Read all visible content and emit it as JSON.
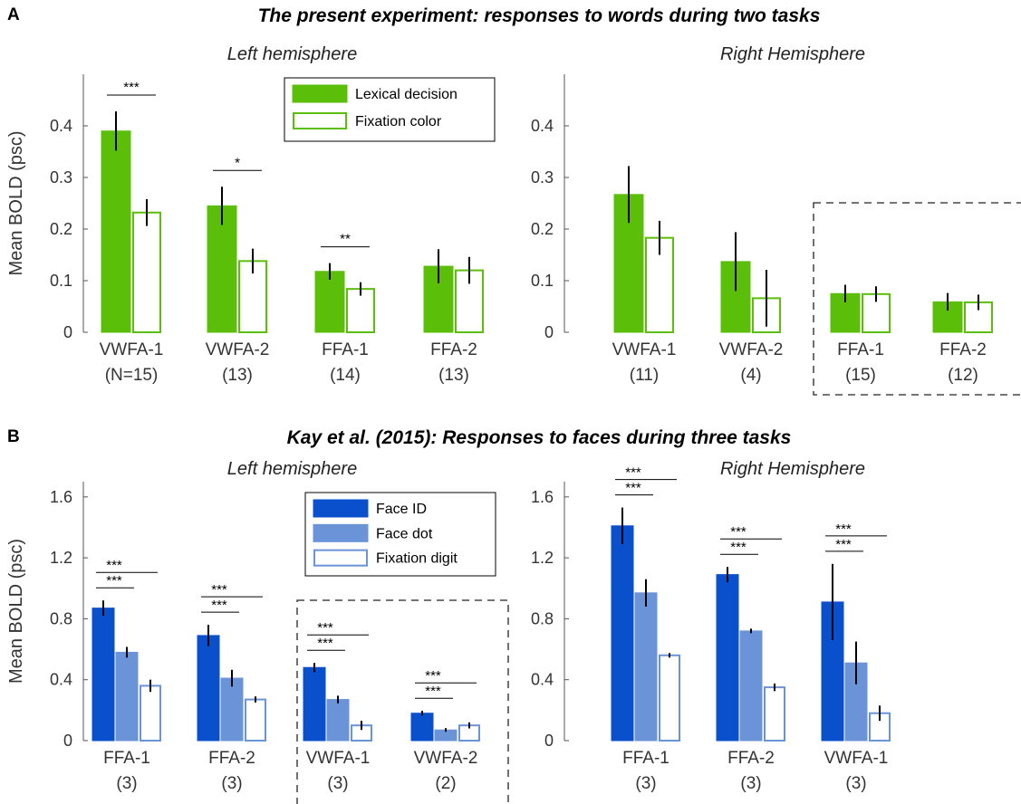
{
  "figure": {
    "panel_a_letter": "A",
    "panel_a_title": "The present experiment: responses to words during two tasks",
    "panel_b_letter": "B",
    "panel_b_title": "Kay et al. (2015): Responses to faces during three tasks"
  },
  "chart_data": [
    {
      "id": "A-left",
      "type": "bar",
      "title": "Left hemisphere",
      "ylabel": "Mean BOLD (psc)",
      "ylim": [
        0,
        0.5
      ],
      "yticks": [
        0,
        0.1,
        0.2,
        0.3,
        0.4
      ],
      "ytick_labels": [
        "0",
        "0.1",
        "0.2",
        "0.3",
        "0.4"
      ],
      "categories": [
        "VWFA-1",
        "VWFA-2",
        "FFA-1",
        "FFA-2"
      ],
      "n_labels": [
        "(N=15)",
        "(13)",
        "(14)",
        "(13)"
      ],
      "series": [
        {
          "name": "Lexical decision",
          "color": "#5BBF0A",
          "filled": true,
          "values": [
            0.39,
            0.245,
            0.118,
            0.128
          ],
          "errors": [
            0.038,
            0.037,
            0.016,
            0.033
          ]
        },
        {
          "name": "Fixation color",
          "color": "#5BBF0A",
          "filled": false,
          "values": [
            0.232,
            0.138,
            0.084,
            0.12
          ],
          "errors": [
            0.026,
            0.024,
            0.013,
            0.026
          ]
        }
      ],
      "significance": [
        {
          "category": 0,
          "stars": "***"
        },
        {
          "category": 1,
          "stars": "*"
        },
        {
          "category": 2,
          "stars": "**"
        }
      ],
      "legend": "top-right"
    },
    {
      "id": "A-right",
      "type": "bar",
      "title": "Right Hemisphere",
      "ylabel": "",
      "ylim": [
        0,
        0.5
      ],
      "yticks": [
        0,
        0.1,
        0.2,
        0.3,
        0.4
      ],
      "ytick_labels": [
        "0",
        "0.1",
        "0.2",
        "0.3",
        "0.4"
      ],
      "categories": [
        "VWFA-1",
        "VWFA-2",
        "FFA-1",
        "FFA-2"
      ],
      "n_labels": [
        "(11)",
        "(4)",
        "(15)",
        "(12)"
      ],
      "series": [
        {
          "name": "Lexical decision",
          "color": "#5BBF0A",
          "filled": true,
          "values": [
            0.267,
            0.137,
            0.075,
            0.059
          ],
          "errors": [
            0.055,
            0.057,
            0.017,
            0.017
          ]
        },
        {
          "name": "Fixation color",
          "color": "#5BBF0A",
          "filled": false,
          "values": [
            0.183,
            0.066,
            0.074,
            0.058
          ],
          "errors": [
            0.033,
            0.055,
            0.015,
            0.015
          ]
        }
      ],
      "significance": [],
      "highlight_categories": [
        2,
        3
      ]
    },
    {
      "id": "B-left",
      "type": "bar",
      "title": "Left hemisphere",
      "ylabel": "Mean BOLD (psc)",
      "ylim": [
        0,
        1.7
      ],
      "yticks": [
        0,
        0.4,
        0.8,
        1.2,
        1.6
      ],
      "ytick_labels": [
        "0",
        "0.4",
        "0.8",
        "1.2",
        "1.6"
      ],
      "categories": [
        "FFA-1",
        "FFA-2",
        "VWFA-1",
        "VWFA-2"
      ],
      "n_labels": [
        "(3)",
        "(3)",
        "(3)",
        "(2)"
      ],
      "series": [
        {
          "name": "Face ID",
          "color": "#0A50CC",
          "filled": true,
          "values": [
            0.87,
            0.69,
            0.48,
            0.18
          ],
          "errors": [
            0.05,
            0.07,
            0.03,
            0.015
          ]
        },
        {
          "name": "Face dot",
          "color": "#6A93D8",
          "filled": true,
          "values": [
            0.58,
            0.41,
            0.27,
            0.07
          ],
          "errors": [
            0.035,
            0.055,
            0.025,
            0.012
          ]
        },
        {
          "name": "Fixation digit",
          "color": "#6A93D8",
          "filled": false,
          "values": [
            0.36,
            0.27,
            0.1,
            0.1
          ],
          "errors": [
            0.04,
            0.02,
            0.03,
            0.02
          ]
        }
      ],
      "significance": [
        {
          "category": 0,
          "stars": [
            "***",
            "***"
          ]
        },
        {
          "category": 1,
          "stars": [
            "***",
            "***"
          ]
        },
        {
          "category": 2,
          "stars": [
            "***",
            "***"
          ]
        },
        {
          "category": 3,
          "stars": [
            "***",
            "***"
          ]
        }
      ],
      "highlight_categories": [
        2,
        3
      ],
      "legend": "top-right"
    },
    {
      "id": "B-right",
      "type": "bar",
      "title": "Right Hemisphere",
      "ylabel": "",
      "ylim": [
        0,
        1.7
      ],
      "yticks": [
        0,
        0.4,
        0.8,
        1.2,
        1.6
      ],
      "ytick_labels": [
        "0",
        "0.4",
        "0.8",
        "1.2",
        "1.6"
      ],
      "categories": [
        "FFA-1",
        "FFA-2",
        "VWFA-1"
      ],
      "n_labels": [
        "(3)",
        "(3)",
        "(3)"
      ],
      "series": [
        {
          "name": "Face ID",
          "color": "#0A50CC",
          "filled": true,
          "values": [
            1.41,
            1.09,
            0.91
          ],
          "errors": [
            0.12,
            0.05,
            0.25
          ]
        },
        {
          "name": "Face dot",
          "color": "#6A93D8",
          "filled": true,
          "values": [
            0.97,
            0.72,
            0.51
          ],
          "errors": [
            0.09,
            0.015,
            0.14
          ]
        },
        {
          "name": "Fixation digit",
          "color": "#6A93D8",
          "filled": false,
          "values": [
            0.56,
            0.35,
            0.18
          ],
          "errors": [
            0.015,
            0.025,
            0.05
          ]
        }
      ],
      "significance": [
        {
          "category": 0,
          "stars": [
            "***",
            "***"
          ]
        },
        {
          "category": 1,
          "stars": [
            "***",
            "***"
          ]
        },
        {
          "category": 2,
          "stars": [
            "***",
            "***"
          ]
        }
      ]
    }
  ]
}
